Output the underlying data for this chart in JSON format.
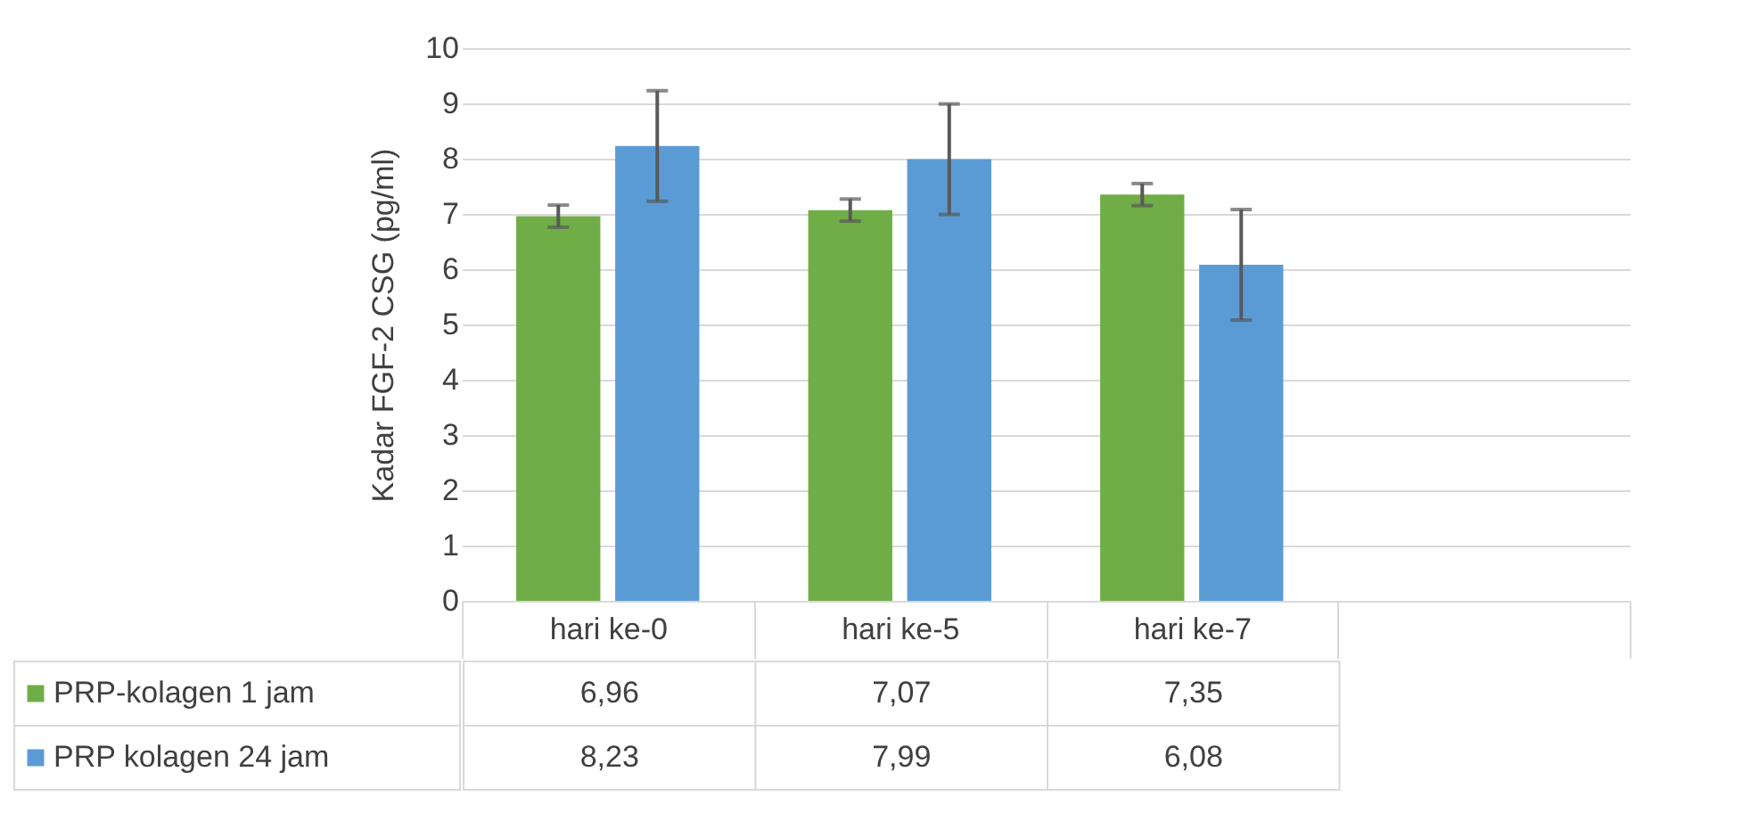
{
  "chart_data": {
    "type": "bar",
    "ylabel": "Kadar FGF-2 CSG (pg/ml)",
    "categories": [
      "hari ke-0",
      "hari ke-5",
      "hari ke-7",
      null
    ],
    "series": [
      {
        "name": "PRP-kolagen 1 jam",
        "color": "#70ad47",
        "values": [
          6.96,
          7.07,
          7.35,
          null
        ],
        "errors": [
          0.2,
          0.2,
          0.2,
          null
        ],
        "value_labels": [
          "6,96",
          "7,07",
          "7,35",
          null
        ]
      },
      {
        "name": "PRP kolagen 24 jam",
        "color": "#5b9bd5",
        "values": [
          8.23,
          7.99,
          6.08,
          null
        ],
        "errors": [
          1.0,
          1.0,
          1.0,
          null
        ],
        "value_labels": [
          "8,23",
          "7,99",
          "6,08",
          null
        ]
      }
    ],
    "ylim": [
      0,
      10
    ],
    "yticks": [
      0,
      1,
      2,
      3,
      4,
      5,
      6,
      7,
      8,
      9,
      10
    ],
    "grid": "y",
    "legend": "bottom"
  }
}
